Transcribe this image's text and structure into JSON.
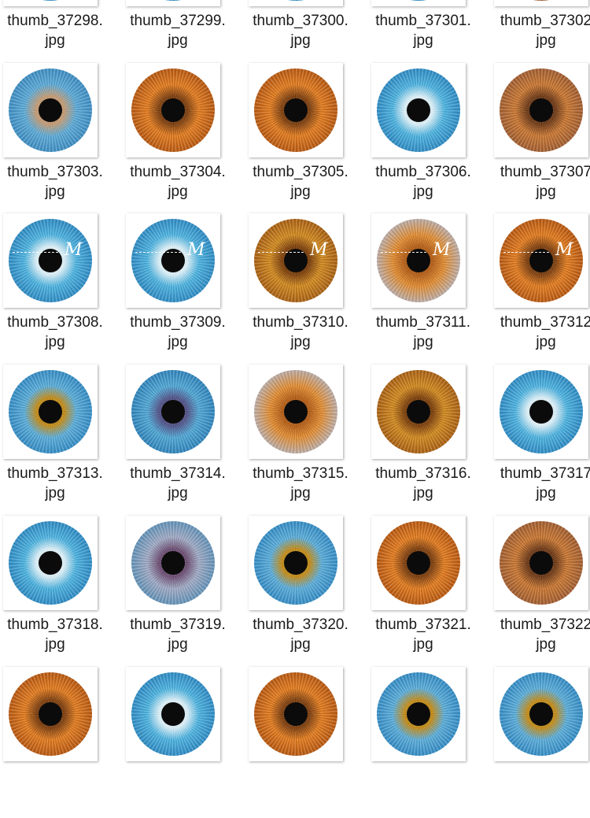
{
  "watermark_mark": "M",
  "rows": [
    {
      "files": [
        {
          "name_part1": "thumb_37298.",
          "name_part2": "jpg",
          "iris": "blue"
        },
        {
          "name_part1": "thumb_37299.",
          "name_part2": "jpg",
          "iris": "blue"
        },
        {
          "name_part1": "thumb_37300.",
          "name_part2": "jpg",
          "iris": "blue"
        },
        {
          "name_part1": "thumb_37301.",
          "name_part2": "jpg",
          "iris": "blue"
        },
        {
          "name_part1": "thumb_37302",
          "name_part2": "jpg",
          "iris": "brown"
        }
      ]
    },
    {
      "files": [
        {
          "name_part1": "thumb_37303.",
          "name_part2": "jpg",
          "iris": "blue-brown"
        },
        {
          "name_part1": "thumb_37304.",
          "name_part2": "jpg",
          "iris": "orange"
        },
        {
          "name_part1": "thumb_37305.",
          "name_part2": "jpg",
          "iris": "orange"
        },
        {
          "name_part1": "thumb_37306.",
          "name_part2": "jpg",
          "iris": "blue"
        },
        {
          "name_part1": "thumb_37307",
          "name_part2": "jpg",
          "iris": "brown"
        }
      ]
    },
    {
      "files": [
        {
          "name_part1": "thumb_37308.",
          "name_part2": "jpg",
          "iris": "blue",
          "watermark": true
        },
        {
          "name_part1": "thumb_37309.",
          "name_part2": "jpg",
          "iris": "blue",
          "watermark": true
        },
        {
          "name_part1": "thumb_37310.",
          "name_part2": "jpg",
          "iris": "amber",
          "watermark": true
        },
        {
          "name_part1": "thumb_37311.",
          "name_part2": "jpg",
          "iris": "orange-grey",
          "watermark": true
        },
        {
          "name_part1": "thumb_37312",
          "name_part2": "jpg",
          "iris": "orange",
          "watermark": true
        }
      ]
    },
    {
      "files": [
        {
          "name_part1": "thumb_37313.",
          "name_part2": "jpg",
          "iris": "blue-gold"
        },
        {
          "name_part1": "thumb_37314.",
          "name_part2": "jpg",
          "iris": "blue-violet"
        },
        {
          "name_part1": "thumb_37315.",
          "name_part2": "jpg",
          "iris": "orange-grey"
        },
        {
          "name_part1": "thumb_37316.",
          "name_part2": "jpg",
          "iris": "amber"
        },
        {
          "name_part1": "thumb_37317",
          "name_part2": "jpg",
          "iris": "blue"
        }
      ]
    },
    {
      "files": [
        {
          "name_part1": "thumb_37318.",
          "name_part2": "jpg",
          "iris": "blue"
        },
        {
          "name_part1": "thumb_37319.",
          "name_part2": "jpg",
          "iris": "grey-violet"
        },
        {
          "name_part1": "thumb_37320.",
          "name_part2": "jpg",
          "iris": "blue-gold"
        },
        {
          "name_part1": "thumb_37321.",
          "name_part2": "jpg",
          "iris": "orange"
        },
        {
          "name_part1": "thumb_37322",
          "name_part2": "jpg",
          "iris": "brown"
        }
      ]
    },
    {
      "files": [
        {
          "name_part1": "",
          "name_part2": "",
          "iris": "orange"
        },
        {
          "name_part1": "",
          "name_part2": "",
          "iris": "blue"
        },
        {
          "name_part1": "",
          "name_part2": "",
          "iris": "orange"
        },
        {
          "name_part1": "",
          "name_part2": "",
          "iris": "blue-gold"
        },
        {
          "name_part1": "",
          "name_part2": "",
          "iris": "blue-gold"
        }
      ]
    }
  ],
  "iris_colors": {
    "blue": [
      "#dff3fb",
      "#4bb2df",
      "#2a86c0"
    ],
    "blue-brown": [
      "#c49a72",
      "#5aa9d6",
      "#3a8ac0"
    ],
    "orange": [
      "#7a3a08",
      "#e17a1c",
      "#b2530e"
    ],
    "brown": [
      "#6a3410",
      "#c8752f",
      "#9c5a30"
    ],
    "amber": [
      "#7a3b05",
      "#d0881c",
      "#a35a10"
    ],
    "orange-grey": [
      "#b35a10",
      "#e08a2e",
      "#b7b0b4"
    ],
    "blue-gold": [
      "#c28a14",
      "#59acd9",
      "#2f88c2"
    ],
    "blue-violet": [
      "#4e4f86",
      "#4ea6d4",
      "#2b7fb8"
    ],
    "grey-violet": [
      "#6a4a70",
      "#9fa9c3",
      "#5b8fb6"
    ]
  }
}
